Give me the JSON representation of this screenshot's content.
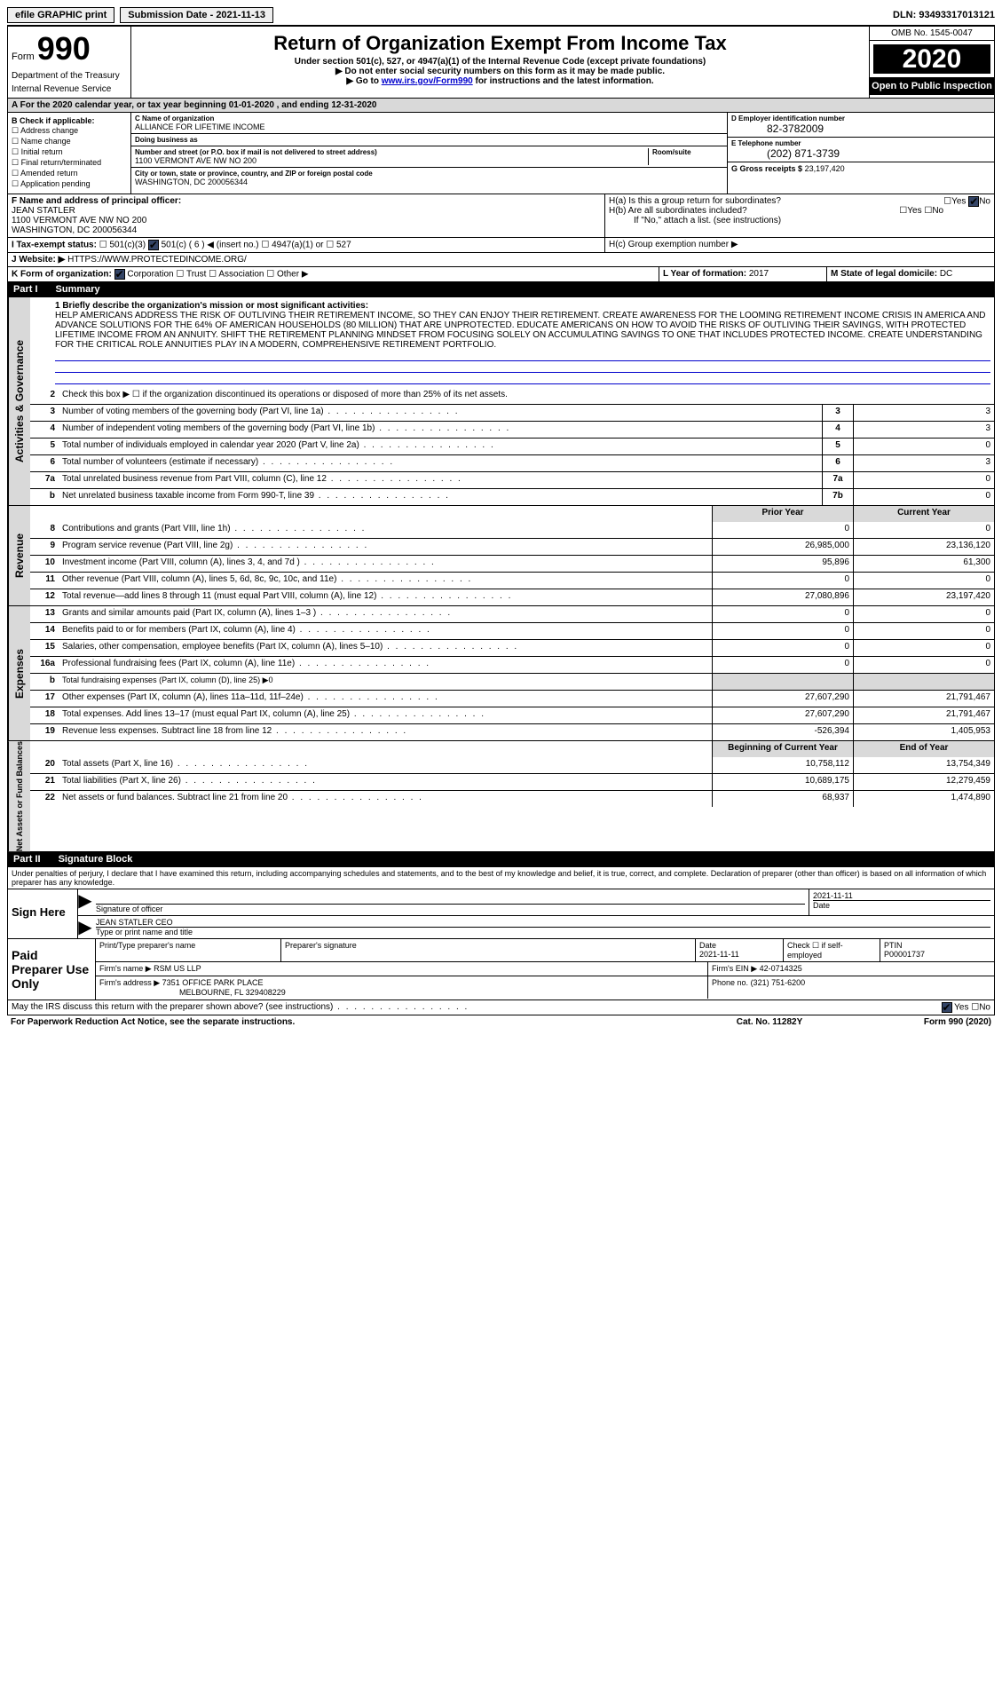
{
  "topbar": {
    "efile": "efile GRAPHIC print",
    "submission_label": "Submission Date - 2021-11-13",
    "dln": "DLN: 93493317013121"
  },
  "header": {
    "form_word": "Form",
    "form_num": "990",
    "title": "Return of Organization Exempt From Income Tax",
    "sub1": "Under section 501(c), 527, or 4947(a)(1) of the Internal Revenue Code (except private foundations)",
    "sub2": "▶ Do not enter social security numbers on this form as it may be made public.",
    "sub3_pre": "▶ Go to ",
    "sub3_link": "www.irs.gov/Form990",
    "sub3_post": " for instructions and the latest information.",
    "dept1": "Department of the Treasury",
    "dept2": "Internal Revenue Service",
    "omb": "OMB No. 1545-0047",
    "year": "2020",
    "open_public": "Open to Public Inspection"
  },
  "period": "A  For the 2020 calendar year, or tax year beginning 01-01-2020    , and ending 12-31-2020",
  "boxB": {
    "label": "B Check if applicable:",
    "opts": [
      "Address change",
      "Name change",
      "Initial return",
      "Final return/terminated",
      "Amended return",
      "Application pending"
    ]
  },
  "boxC": {
    "name_label": "C Name of organization",
    "name": "ALLIANCE FOR LIFETIME INCOME",
    "dba_label": "Doing business as",
    "dba": "",
    "addr_label": "Number and street (or P.O. box if mail is not delivered to street address)",
    "addr": "1100 VERMONT AVE NW NO 200",
    "room_label": "Room/suite",
    "city_label": "City or town, state or province, country, and ZIP or foreign postal code",
    "city": "WASHINGTON, DC  200056344"
  },
  "boxD": {
    "label": "D Employer identification number",
    "value": "82-3782009"
  },
  "boxE": {
    "label": "E Telephone number",
    "value": "(202) 871-3739"
  },
  "boxG": {
    "label": "G Gross receipts $",
    "value": "23,197,420"
  },
  "boxF": {
    "label": "F  Name and address of principal officer:",
    "name": "JEAN STATLER",
    "addr1": "1100 VERMONT AVE NW NO 200",
    "addr2": "WASHINGTON, DC  200056344"
  },
  "boxH": {
    "a": "H(a)  Is this a group return for subordinates?",
    "b": "H(b)  Are all subordinates included?",
    "note": "If \"No,\" attach a list. (see instructions)",
    "c": "H(c)  Group exemption number ▶",
    "yes": "Yes",
    "no": "No"
  },
  "rowI": {
    "label": "I  Tax-exempt status:",
    "opt1": "501(c)(3)",
    "opt2": "501(c) ( 6 ) ◀ (insert no.)",
    "opt3": "4947(a)(1) or",
    "opt4": "527"
  },
  "rowJ": {
    "label": "J  Website: ▶",
    "value": " HTTPS://WWW.PROTECTEDINCOME.ORG/"
  },
  "rowK": {
    "label": "K Form of organization:",
    "opts": [
      "Corporation",
      "Trust",
      "Association",
      "Other ▶"
    ]
  },
  "rowL": {
    "label": "L Year of formation:",
    "value": "2017"
  },
  "rowM": {
    "label": "M State of legal domicile:",
    "value": "DC"
  },
  "part1": {
    "label": "Part I",
    "title": "Summary"
  },
  "mission": {
    "label": "1  Briefly describe the organization's mission or most significant activities:",
    "text": "HELP AMERICANS ADDRESS THE RISK OF OUTLIVING THEIR RETIREMENT INCOME, SO THEY CAN ENJOY THEIR RETIREMENT. CREATE AWARENESS FOR THE LOOMING RETIREMENT INCOME CRISIS IN AMERICA AND ADVANCE SOLUTIONS FOR THE 64% OF AMERICAN HOUSEHOLDS (80 MILLION) THAT ARE UNPROTECTED. EDUCATE AMERICANS ON HOW TO AVOID THE RISKS OF OUTLIVING THEIR SAVINGS, WITH PROTECTED LIFETIME INCOME FROM AN ANNUITY. SHIFT THE RETIREMENT PLANNING MINDSET FROM FOCUSING SOLELY ON ACCUMULATING SAVINGS TO ONE THAT INCLUDES PROTECTED INCOME. CREATE UNDERSTANDING FOR THE CRITICAL ROLE ANNUITIES PLAY IN A MODERN, COMPREHENSIVE RETIREMENT PORTFOLIO."
  },
  "governance": {
    "label": "Activities & Governance",
    "rows": [
      {
        "n": "2",
        "d": "Check this box ▶ ☐ if the organization discontinued its operations or disposed of more than 25% of its net assets."
      },
      {
        "n": "3",
        "d": "Number of voting members of the governing body (Part VI, line 1a)",
        "box": "3",
        "v": "3"
      },
      {
        "n": "4",
        "d": "Number of independent voting members of the governing body (Part VI, line 1b)",
        "box": "4",
        "v": "3"
      },
      {
        "n": "5",
        "d": "Total number of individuals employed in calendar year 2020 (Part V, line 2a)",
        "box": "5",
        "v": "0"
      },
      {
        "n": "6",
        "d": "Total number of volunteers (estimate if necessary)",
        "box": "6",
        "v": "3"
      },
      {
        "n": "7a",
        "d": "Total unrelated business revenue from Part VIII, column (C), line 12",
        "box": "7a",
        "v": "0"
      },
      {
        "n": "b",
        "d": "Net unrelated business taxable income from Form 990-T, line 39",
        "box": "7b",
        "v": "0"
      }
    ]
  },
  "colheads": {
    "prior": "Prior Year",
    "current": "Current Year"
  },
  "revenue": {
    "label": "Revenue",
    "rows": [
      {
        "n": "8",
        "d": "Contributions and grants (Part VIII, line 1h)",
        "p": "0",
        "c": "0"
      },
      {
        "n": "9",
        "d": "Program service revenue (Part VIII, line 2g)",
        "p": "26,985,000",
        "c": "23,136,120"
      },
      {
        "n": "10",
        "d": "Investment income (Part VIII, column (A), lines 3, 4, and 7d )",
        "p": "95,896",
        "c": "61,300"
      },
      {
        "n": "11",
        "d": "Other revenue (Part VIII, column (A), lines 5, 6d, 8c, 9c, 10c, and 11e)",
        "p": "0",
        "c": "0"
      },
      {
        "n": "12",
        "d": "Total revenue—add lines 8 through 11 (must equal Part VIII, column (A), line 12)",
        "p": "27,080,896",
        "c": "23,197,420"
      }
    ]
  },
  "expenses": {
    "label": "Expenses",
    "rows": [
      {
        "n": "13",
        "d": "Grants and similar amounts paid (Part IX, column (A), lines 1–3 )",
        "p": "0",
        "c": "0"
      },
      {
        "n": "14",
        "d": "Benefits paid to or for members (Part IX, column (A), line 4)",
        "p": "0",
        "c": "0"
      },
      {
        "n": "15",
        "d": "Salaries, other compensation, employee benefits (Part IX, column (A), lines 5–10)",
        "p": "0",
        "c": "0"
      },
      {
        "n": "16a",
        "d": "Professional fundraising fees (Part IX, column (A), line 11e)",
        "p": "0",
        "c": "0"
      },
      {
        "n": "b",
        "d": "Total fundraising expenses (Part IX, column (D), line 25) ▶0",
        "shade": true
      },
      {
        "n": "17",
        "d": "Other expenses (Part IX, column (A), lines 11a–11d, 11f–24e)",
        "p": "27,607,290",
        "c": "21,791,467"
      },
      {
        "n": "18",
        "d": "Total expenses. Add lines 13–17 (must equal Part IX, column (A), line 25)",
        "p": "27,607,290",
        "c": "21,791,467"
      },
      {
        "n": "19",
        "d": "Revenue less expenses. Subtract line 18 from line 12",
        "p": "-526,394",
        "c": "1,405,953"
      }
    ]
  },
  "netassets": {
    "label": "Net Assets or Fund Balances",
    "heads": {
      "beg": "Beginning of Current Year",
      "end": "End of Year"
    },
    "rows": [
      {
        "n": "20",
        "d": "Total assets (Part X, line 16)",
        "p": "10,758,112",
        "c": "13,754,349"
      },
      {
        "n": "21",
        "d": "Total liabilities (Part X, line 26)",
        "p": "10,689,175",
        "c": "12,279,459"
      },
      {
        "n": "22",
        "d": "Net assets or fund balances. Subtract line 21 from line 20",
        "p": "68,937",
        "c": "1,474,890"
      }
    ]
  },
  "part2": {
    "label": "Part II",
    "title": "Signature Block"
  },
  "penalty": "Under penalties of perjury, I declare that I have examined this return, including accompanying schedules and statements, and to the best of my knowledge and belief, it is true, correct, and complete. Declaration of preparer (other than officer) is based on all information of which preparer has any knowledge.",
  "sign": {
    "here": "Sign Here",
    "sig_label": "Signature of officer",
    "date_label": "Date",
    "date": "2021-11-11",
    "name": "JEAN STATLER CEO",
    "name_label": "Type or print name and title"
  },
  "prep": {
    "label": "Paid Preparer Use Only",
    "r1": {
      "c1_label": "Print/Type preparer's name",
      "c1": "",
      "c2_label": "Preparer's signature",
      "c2": "",
      "c3_label": "Date",
      "c3": "2021-11-11",
      "c4_label": "Check ☐ if self-employed",
      "c5_label": "PTIN",
      "c5": "P00001737"
    },
    "r2": {
      "firm_label": "Firm's name    ▶",
      "firm": "RSM US LLP",
      "ein_label": "Firm's EIN ▶",
      "ein": "42-0714325"
    },
    "r3": {
      "addr_label": "Firm's address ▶",
      "addr1": "7351 OFFICE PARK PLACE",
      "addr2": "MELBOURNE, FL  329408229",
      "phone_label": "Phone no.",
      "phone": "(321) 751-6200"
    }
  },
  "discuss": {
    "q": "May the IRS discuss this return with the preparer shown above? (see instructions)",
    "yes": "Yes",
    "no": "No"
  },
  "footer": {
    "left": "For Paperwork Reduction Act Notice, see the separate instructions.",
    "mid": "Cat. No. 11282Y",
    "right": "Form 990 (2020)"
  }
}
